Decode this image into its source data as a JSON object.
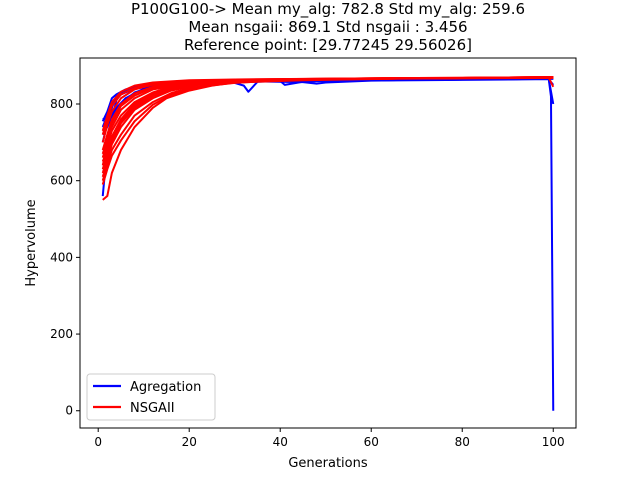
{
  "chart_data": {
    "type": "line",
    "title_lines": [
      "P100G100-> Mean my_alg: 782.8 Std my_alg: 259.6",
      "Mean nsgaii: 869.1 Std nsgaii : 3.456",
      "Reference point: [29.77245 29.56026]"
    ],
    "xlabel": "Generations",
    "ylabel": "Hypervolume",
    "xlim": [
      -4,
      105
    ],
    "ylim": [
      -45,
      920
    ],
    "xticks": [
      0,
      20,
      40,
      60,
      80,
      100
    ],
    "yticks": [
      0,
      200,
      400,
      600,
      800
    ],
    "grid": false,
    "legend": {
      "placement": "lower-left",
      "entries": [
        {
          "label": "Agregation",
          "color": "#0000ff"
        },
        {
          "label": "NSGAII",
          "color": "#ff0000"
        }
      ]
    },
    "series": [
      {
        "name": "Agregation",
        "color": "#0000ff",
        "runs": [
          [
            [
              1,
              560
            ],
            [
              2,
              690
            ],
            [
              3,
              760
            ],
            [
              4,
              810
            ],
            [
              5,
              830
            ],
            [
              7,
              840
            ],
            [
              10,
              845
            ],
            [
              15,
              850
            ],
            [
              20,
              855
            ],
            [
              25,
              856
            ],
            [
              30,
              855
            ],
            [
              32,
              848
            ],
            [
              33,
              832
            ],
            [
              35,
              858
            ],
            [
              40,
              860
            ],
            [
              41,
              850
            ],
            [
              45,
              858
            ],
            [
              50,
              860
            ],
            [
              60,
              862
            ],
            [
              70,
              863
            ],
            [
              80,
              864
            ],
            [
              90,
              865
            ],
            [
              98,
              866
            ],
            [
              99,
              866
            ],
            [
              100,
              800
            ]
          ],
          [
            [
              1,
              700
            ],
            [
              2,
              750
            ],
            [
              3,
              790
            ],
            [
              4,
              820
            ],
            [
              6,
              835
            ],
            [
              8,
              845
            ],
            [
              12,
              850
            ],
            [
              20,
              856
            ],
            [
              30,
              860
            ],
            [
              45,
              857
            ],
            [
              48,
              853
            ],
            [
              50,
              856
            ],
            [
              60,
              861
            ],
            [
              80,
              863
            ],
            [
              99,
              865
            ],
            [
              100,
              850
            ]
          ],
          [
            [
              1,
              740
            ],
            [
              2,
              770
            ],
            [
              3,
              800
            ],
            [
              5,
              825
            ],
            [
              8,
              840
            ],
            [
              12,
              848
            ],
            [
              20,
              855
            ],
            [
              30,
              858
            ],
            [
              40,
              860
            ],
            [
              60,
              862
            ],
            [
              80,
              864
            ],
            [
              99,
              866
            ],
            [
              99.5,
              820
            ],
            [
              100,
              0
            ]
          ],
          [
            [
              1,
              755
            ],
            [
              2,
              780
            ],
            [
              3,
              815
            ],
            [
              4,
              825
            ],
            [
              6,
              838
            ],
            [
              10,
              848
            ],
            [
              15,
              852
            ],
            [
              20,
              856
            ],
            [
              28,
              858
            ],
            [
              32,
              862
            ],
            [
              40,
              861
            ],
            [
              60,
              862
            ],
            [
              80,
              864
            ],
            [
              100,
              866
            ]
          ],
          [
            [
              1,
              720
            ],
            [
              2,
              740
            ],
            [
              3,
              770
            ],
            [
              5,
              800
            ],
            [
              8,
              830
            ],
            [
              12,
              845
            ],
            [
              18,
              852
            ],
            [
              25,
              858
            ],
            [
              40,
              861
            ],
            [
              60,
              863
            ],
            [
              80,
              865
            ],
            [
              100,
              867
            ]
          ],
          [
            [
              1,
              760
            ],
            [
              2,
              765
            ],
            [
              4,
              790
            ],
            [
              6,
              815
            ],
            [
              10,
              840
            ],
            [
              15,
              850
            ],
            [
              25,
              857
            ],
            [
              40,
              860
            ],
            [
              60,
              862
            ],
            [
              80,
              864
            ],
            [
              100,
              866
            ]
          ]
        ]
      },
      {
        "name": "NSGAII",
        "color": "#ff0000",
        "runs": [
          [
            [
              1,
              550
            ],
            [
              2,
              560
            ],
            [
              3,
              620
            ],
            [
              5,
              680
            ],
            [
              8,
              740
            ],
            [
              12,
              790
            ],
            [
              15,
              815
            ],
            [
              20,
              835
            ],
            [
              25,
              848
            ],
            [
              30,
              856
            ],
            [
              40,
              862
            ],
            [
              60,
              866
            ],
            [
              80,
              868
            ],
            [
              100,
              870
            ]
          ],
          [
            [
              1,
              600
            ],
            [
              2,
              640
            ],
            [
              3,
              680
            ],
            [
              5,
              720
            ],
            [
              8,
              770
            ],
            [
              12,
              805
            ],
            [
              16,
              828
            ],
            [
              20,
              842
            ],
            [
              30,
              855
            ],
            [
              40,
              862
            ],
            [
              60,
              866
            ],
            [
              80,
              868
            ],
            [
              100,
              870
            ]
          ],
          [
            [
              1,
              620
            ],
            [
              2,
              660
            ],
            [
              3,
              700
            ],
            [
              5,
              750
            ],
            [
              8,
              790
            ],
            [
              12,
              820
            ],
            [
              16,
              838
            ],
            [
              20,
              848
            ],
            [
              30,
              858
            ],
            [
              40,
              863
            ],
            [
              60,
              866
            ],
            [
              80,
              868
            ],
            [
              100,
              869
            ]
          ],
          [
            [
              1,
              640
            ],
            [
              2,
              690
            ],
            [
              3,
              730
            ],
            [
              5,
              770
            ],
            [
              8,
              805
            ],
            [
              12,
              830
            ],
            [
              16,
              845
            ],
            [
              22,
              855
            ],
            [
              30,
              860
            ],
            [
              40,
              864
            ],
            [
              60,
              867
            ],
            [
              80,
              868
            ],
            [
              100,
              870
            ]
          ],
          [
            [
              1,
              660
            ],
            [
              2,
              700
            ],
            [
              3,
              740
            ],
            [
              5,
              785
            ],
            [
              8,
              815
            ],
            [
              12,
              838
            ],
            [
              18,
              850
            ],
            [
              25,
              858
            ],
            [
              35,
              862
            ],
            [
              50,
              865
            ],
            [
              70,
              867
            ],
            [
              100,
              869
            ]
          ],
          [
            [
              1,
              680
            ],
            [
              2,
              720
            ],
            [
              3,
              760
            ],
            [
              5,
              800
            ],
            [
              8,
              828
            ],
            [
              12,
              845
            ],
            [
              18,
              855
            ],
            [
              25,
              860
            ],
            [
              40,
              864
            ],
            [
              60,
              866
            ],
            [
              80,
              868
            ],
            [
              100,
              870
            ]
          ],
          [
            [
              1,
              700
            ],
            [
              2,
              745
            ],
            [
              3,
              780
            ],
            [
              5,
              815
            ],
            [
              8,
              838
            ],
            [
              12,
              850
            ],
            [
              18,
              858
            ],
            [
              25,
              862
            ],
            [
              40,
              865
            ],
            [
              60,
              867
            ],
            [
              80,
              868
            ],
            [
              100,
              868
            ]
          ],
          [
            [
              1,
              720
            ],
            [
              2,
              760
            ],
            [
              3,
              795
            ],
            [
              5,
              825
            ],
            [
              8,
              842
            ],
            [
              12,
              853
            ],
            [
              20,
              860
            ],
            [
              30,
              863
            ],
            [
              50,
              866
            ],
            [
              70,
              868
            ],
            [
              100,
              869
            ]
          ],
          [
            [
              1,
              610
            ],
            [
              2,
              650
            ],
            [
              3,
              695
            ],
            [
              5,
              740
            ],
            [
              8,
              785
            ],
            [
              12,
              815
            ],
            [
              16,
              835
            ],
            [
              22,
              850
            ],
            [
              30,
              857
            ],
            [
              45,
              863
            ],
            [
              60,
              866
            ],
            [
              80,
              868
            ],
            [
              100,
              870
            ]
          ],
          [
            [
              1,
              590
            ],
            [
              2,
              630
            ],
            [
              3,
              665
            ],
            [
              5,
              705
            ],
            [
              8,
              755
            ],
            [
              12,
              798
            ],
            [
              16,
              824
            ],
            [
              22,
              845
            ],
            [
              30,
              856
            ],
            [
              45,
              862
            ],
            [
              65,
              866
            ],
            [
              85,
              868
            ],
            [
              100,
              869
            ]
          ],
          [
            [
              1,
              730
            ],
            [
              2,
              770
            ],
            [
              3,
              805
            ],
            [
              5,
              832
            ],
            [
              8,
              848
            ],
            [
              12,
              856
            ],
            [
              20,
              862
            ],
            [
              30,
              864
            ],
            [
              50,
              866
            ],
            [
              70,
              868
            ],
            [
              100,
              869
            ]
          ],
          [
            [
              1,
              650
            ],
            [
              2,
              680
            ],
            [
              3,
              715
            ],
            [
              5,
              760
            ],
            [
              8,
              800
            ],
            [
              12,
              828
            ],
            [
              18,
              846
            ],
            [
              25,
              856
            ],
            [
              35,
              861
            ],
            [
              50,
              865
            ],
            [
              70,
              867
            ],
            [
              100,
              868
            ]
          ],
          [
            [
              1,
              670
            ],
            [
              2,
              710
            ],
            [
              3,
              750
            ],
            [
              5,
              795
            ],
            [
              8,
              822
            ],
            [
              12,
              842
            ],
            [
              18,
              853
            ],
            [
              25,
              859
            ],
            [
              40,
              864
            ],
            [
              60,
              866
            ],
            [
              80,
              868
            ],
            [
              99,
              869
            ],
            [
              100,
              845
            ]
          ],
          [
            [
              1,
              630
            ],
            [
              2,
              670
            ],
            [
              3,
              710
            ],
            [
              5,
              755
            ],
            [
              8,
              795
            ],
            [
              12,
              825
            ],
            [
              16,
              842
            ],
            [
              22,
              853
            ],
            [
              30,
              859
            ],
            [
              45,
              864
            ],
            [
              65,
              867
            ],
            [
              85,
              868
            ],
            [
              100,
              870
            ]
          ]
        ]
      }
    ]
  }
}
